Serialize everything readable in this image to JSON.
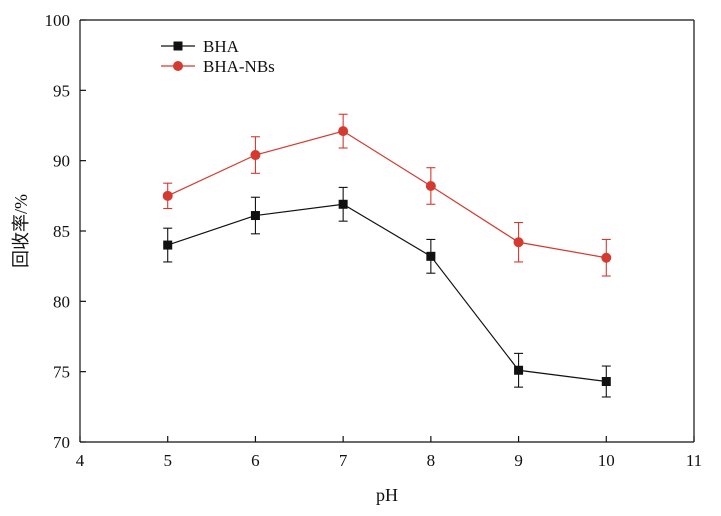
{
  "chart_data": {
    "type": "line",
    "title": "",
    "xlabel": "pH",
    "ylabel": "回收率/%",
    "xlim": [
      4,
      11
    ],
    "ylim": [
      70,
      100
    ],
    "x_ticks": [
      "4",
      "5",
      "6",
      "7",
      "8",
      "9",
      "10",
      "11"
    ],
    "y_ticks": [
      "70",
      "75",
      "80",
      "85",
      "90",
      "95",
      "100"
    ],
    "grid": false,
    "legend_position": "top-left",
    "x": [
      5,
      6,
      7,
      8,
      9,
      10
    ],
    "series": [
      {
        "name": "BHA",
        "marker": "square",
        "color": "#111111",
        "values": [
          84.0,
          86.1,
          86.9,
          83.2,
          75.1,
          74.3
        ],
        "errors": [
          1.2,
          1.3,
          1.2,
          1.2,
          1.2,
          1.1
        ]
      },
      {
        "name": "BHA-NBs",
        "marker": "circle",
        "color": "#d43a2f",
        "values": [
          87.5,
          90.4,
          92.1,
          88.2,
          84.2,
          83.1
        ],
        "errors": [
          0.9,
          1.3,
          1.2,
          1.3,
          1.4,
          1.3
        ]
      }
    ]
  }
}
